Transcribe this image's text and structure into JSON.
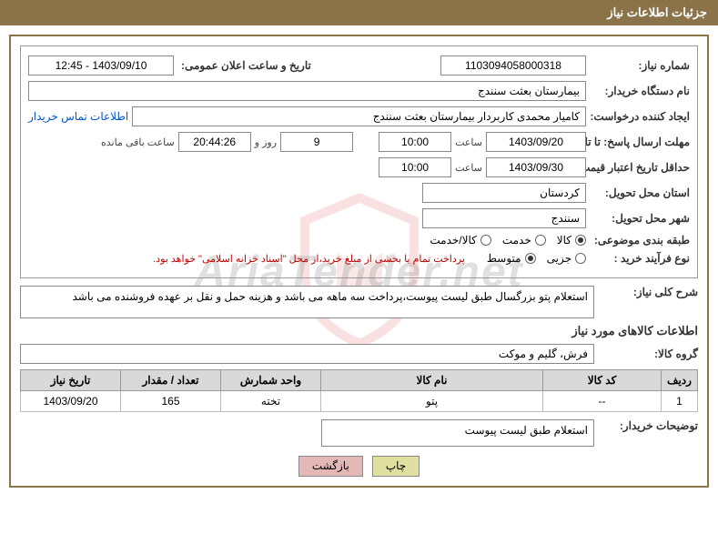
{
  "header": {
    "title": "جزئیات اطلاعات نیاز"
  },
  "form": {
    "need_number_label": "شماره نیاز:",
    "need_number": "1103094058000318",
    "announce_datetime_label": "تاریخ و ساعت اعلان عمومی:",
    "announce_datetime": "1403/09/10 - 12:45",
    "buyer_org_label": "نام دستگاه خریدار:",
    "buyer_org": "بیمارستان بعثت سنندج",
    "requester_label": "ایجاد کننده درخواست:",
    "requester": "کامیار محمدی کاربردار بیمارستان بعثت سنندج",
    "contact_link": "اطلاعات تماس خریدار",
    "response_deadline_label": "مهلت ارسال پاسخ: تا تاریخ:",
    "response_date": "1403/09/20",
    "time_label": "ساعت",
    "response_time": "10:00",
    "days_remaining": "9",
    "days_label": "روز و",
    "time_remaining": "20:44:26",
    "remaining_label": "ساعت باقی مانده",
    "validity_label": "حداقل تاریخ اعتبار قیمت: تا تاریخ:",
    "validity_date": "1403/09/30",
    "validity_time": "10:00",
    "delivery_province_label": "استان محل تحویل:",
    "delivery_province": "کردستان",
    "delivery_city_label": "شهر محل تحویل:",
    "delivery_city": "سنندج",
    "category_label": "طبقه بندی موضوعی:",
    "radio_goods": "کالا",
    "radio_service": "خدمت",
    "radio_goods_service": "کالا/خدمت",
    "purchase_type_label": "نوع فرآیند خرید :",
    "radio_partial": "جزیی",
    "radio_medium": "متوسط",
    "payment_note": "پرداخت تمام یا بخشی از مبلغ خرید،از محل \"اسناد خزانه اسلامی\" خواهد بود.",
    "description_label": "شرح کلی نیاز:",
    "description": "استعلام پتو بزرگسال طبق لیست پیوست،پرداخت سه ماهه می باشد و هزینه حمل و نقل بر عهده فروشنده می باشد",
    "goods_info_title": "اطلاعات کالاهای مورد نیاز",
    "goods_group_label": "گروه کالا:",
    "goods_group": "فرش، گلیم و موکت",
    "buyer_notes_label": "توضیحات خریدار:",
    "buyer_notes": "استعلام طبق لیست پیوست"
  },
  "table": {
    "columns": [
      "ردیف",
      "کد کالا",
      "نام کالا",
      "واحد شمارش",
      "تعداد / مقدار",
      "تاریخ نیاز"
    ],
    "col_widths": [
      "40px",
      "130px",
      "auto",
      "110px",
      "110px",
      "110px"
    ],
    "rows": [
      [
        "1",
        "--",
        "پتو",
        "تخته",
        "165",
        "1403/09/20"
      ]
    ]
  },
  "buttons": {
    "print": "چاپ",
    "back": "بازگشت"
  },
  "watermark": {
    "text": "AriaTender.net",
    "shield_color": "#d94040",
    "shield_stroke": "#b03030"
  },
  "colors": {
    "header_bg": "#8a7249",
    "border": "#8a7249",
    "table_header_bg": "#d9d9d9",
    "note_color": "#c00000",
    "link_color": "#0055cc"
  }
}
